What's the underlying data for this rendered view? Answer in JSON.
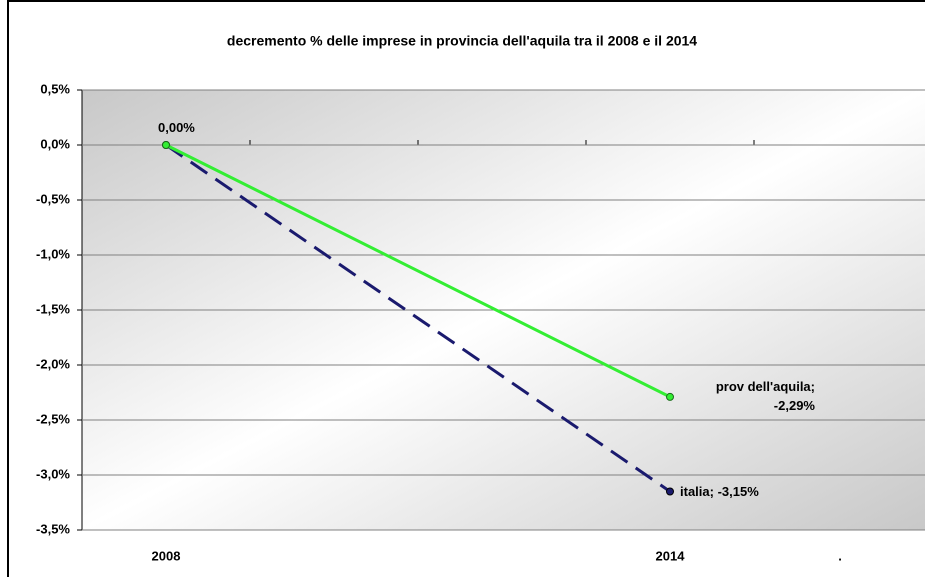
{
  "chart_data": {
    "type": "line",
    "title": "decremento % delle imprese in provincia dell'aquila tra il 2008 e il 2014",
    "categories": [
      "2008",
      "2014",
      "."
    ],
    "series": [
      {
        "name": "prov dell'aquila",
        "color": "#33ee33",
        "values": [
          0,
          -2.29,
          null
        ],
        "value_labels": [
          null,
          "prov dell'aquila; -2,29%",
          null
        ]
      },
      {
        "name": "italia",
        "color": "#1a1a6e",
        "values": [
          0,
          -3.15,
          null
        ],
        "value_labels": [
          "0,00%",
          "italia; -3,15%",
          null
        ]
      }
    ],
    "ylim": [
      -3.5,
      0.5
    ],
    "yticks": [
      {
        "value": 0.5,
        "label": "0,5%"
      },
      {
        "value": 0,
        "label": "0,0%"
      },
      {
        "value": -0.5,
        "label": "-0,5%"
      },
      {
        "value": -1,
        "label": "-1,0%"
      },
      {
        "value": -1.5,
        "label": "-1,5%"
      },
      {
        "value": -2,
        "label": "-2,0%"
      },
      {
        "value": -2.5,
        "label": "-2,5%"
      },
      {
        "value": -3,
        "label": "-3,0%"
      },
      {
        "value": -3.5,
        "label": "-3,5%"
      }
    ],
    "grid": true
  }
}
